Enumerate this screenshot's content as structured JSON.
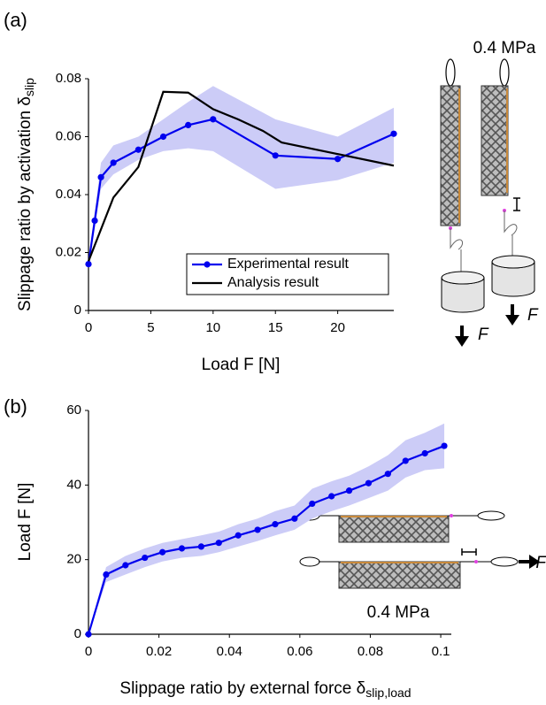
{
  "chart_data": [
    {
      "type": "line",
      "panel_label": "(a)",
      "xlabel": "Load F [N]",
      "ylabel": "Slippage ratio by activation δ",
      "ylabel_subscript": "slip",
      "xlim": [
        0,
        24.5
      ],
      "xticks": [
        0,
        5,
        10,
        15,
        20
      ],
      "ylim": [
        0,
        0.08
      ],
      "yticks": [
        0,
        0.02,
        0.04,
        0.06,
        0.08
      ],
      "legend": "lower right",
      "annotations": [
        "0.4 MPa",
        "F",
        "F"
      ],
      "series": [
        {
          "name": "Experimental result",
          "color": "#0000ee",
          "marker": "circle",
          "band_color": "#ccccf7",
          "x": [
            0,
            0.5,
            1,
            2,
            4,
            6,
            8,
            10,
            15,
            20,
            24.5
          ],
          "values": [
            0.016,
            0.031,
            0.046,
            0.051,
            0.0555,
            0.06,
            0.064,
            0.066,
            0.0535,
            0.0523,
            0.061
          ],
          "lower": [
            0.015,
            0.028,
            0.042,
            0.047,
            0.052,
            0.055,
            0.056,
            0.055,
            0.042,
            0.045,
            0.051
          ],
          "upper": [
            0.018,
            0.034,
            0.051,
            0.057,
            0.06,
            0.066,
            0.072,
            0.0775,
            0.066,
            0.06,
            0.07
          ]
        },
        {
          "name": "Analysis result",
          "color": "#000000",
          "x": [
            0,
            2,
            4,
            6,
            8,
            10,
            12,
            14,
            15.5,
            24.5
          ],
          "values": [
            0.017,
            0.039,
            0.0495,
            0.0755,
            0.0752,
            0.0695,
            0.066,
            0.062,
            0.058,
            0.05
          ]
        }
      ]
    },
    {
      "type": "line",
      "panel_label": "(b)",
      "xlabel": "Slippage ratio by external force δ",
      "xlabel_subscript": "slip,load",
      "ylabel": "Load F [N]",
      "xlim": [
        0,
        0.103
      ],
      "xticks": [
        0,
        0.02,
        0.04,
        0.06,
        0.08,
        0.1
      ],
      "ylim": [
        0,
        60
      ],
      "yticks": [
        0,
        20,
        40,
        60
      ],
      "annotations": [
        "0.4 MPa",
        "F"
      ],
      "series": [
        {
          "color": "#0000ee",
          "marker": "circle",
          "band_color": "#ccccf7",
          "x": [
            0,
            0.005,
            0.0105,
            0.016,
            0.021,
            0.0265,
            0.032,
            0.037,
            0.0425,
            0.048,
            0.053,
            0.0585,
            0.0635,
            0.069,
            0.074,
            0.0795,
            0.085,
            0.09,
            0.0955,
            0.101
          ],
          "values": [
            0,
            16,
            18.5,
            20.5,
            22,
            23,
            23.5,
            24.5,
            26.5,
            28,
            29.5,
            31,
            35,
            37,
            38.5,
            40.5,
            43,
            46.5,
            48.5,
            50.5
          ],
          "lower": [
            0,
            14,
            16,
            18,
            19.5,
            20.5,
            21,
            22,
            23.5,
            25,
            26.5,
            28,
            31,
            33,
            34.5,
            36.5,
            38.5,
            42,
            44,
            44.5
          ],
          "upper": [
            0,
            18,
            21,
            23,
            24.5,
            25.5,
            26.5,
            27.5,
            29.5,
            31,
            33,
            34.5,
            39,
            41,
            42.5,
            45,
            48,
            52,
            54,
            56.5
          ]
        }
      ]
    }
  ]
}
